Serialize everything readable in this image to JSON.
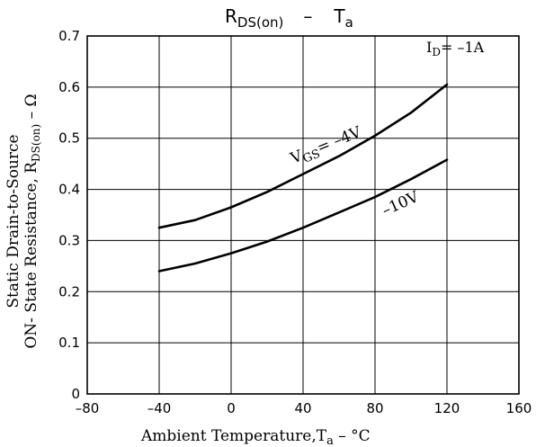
{
  "chart_data": {
    "type": "line",
    "title": {
      "main": "R",
      "sub": "DS(on)",
      "sep": "–",
      "right": "T",
      "right_sub": "a"
    },
    "xlabel": {
      "main": "Ambient Temperature,T",
      "sub": "a",
      "tail": " – °C"
    },
    "ylabel": {
      "line1": "Static Drain-to-Source",
      "line2_main": "ON- State Resistance, R",
      "line2_sub": "DS(on)",
      "line2_tail": " – Ω"
    },
    "xlim": [
      -80,
      160
    ],
    "ylim": [
      0,
      0.7
    ],
    "x_ticks": [
      -80,
      -40,
      0,
      40,
      80,
      120,
      160
    ],
    "x_tick_labels": [
      "–80",
      "–40",
      "0",
      "40",
      "80",
      "120",
      "160"
    ],
    "y_ticks": [
      0,
      0.1,
      0.2,
      0.3,
      0.4,
      0.5,
      0.6,
      0.7
    ],
    "y_tick_labels": [
      "0",
      "0.1",
      "0.2",
      "0.3",
      "0.4",
      "0.5",
      "0.6",
      "0.7"
    ],
    "grid": true,
    "condition": {
      "main": "I",
      "sub": "D",
      "tail": "= –1A"
    },
    "series": [
      {
        "label_main": "V",
        "label_sub": "GS",
        "label_tail": "= –4V",
        "x": [
          -40,
          -20,
          0,
          20,
          40,
          60,
          80,
          100,
          120
        ],
        "y": [
          0.325,
          0.34,
          0.365,
          0.395,
          0.43,
          0.465,
          0.505,
          0.55,
          0.605
        ]
      },
      {
        "label_main": "–10V",
        "x": [
          -40,
          -20,
          0,
          20,
          40,
          60,
          80,
          100,
          120
        ],
        "y": [
          0.24,
          0.255,
          0.275,
          0.298,
          0.325,
          0.355,
          0.385,
          0.42,
          0.458
        ]
      }
    ]
  }
}
